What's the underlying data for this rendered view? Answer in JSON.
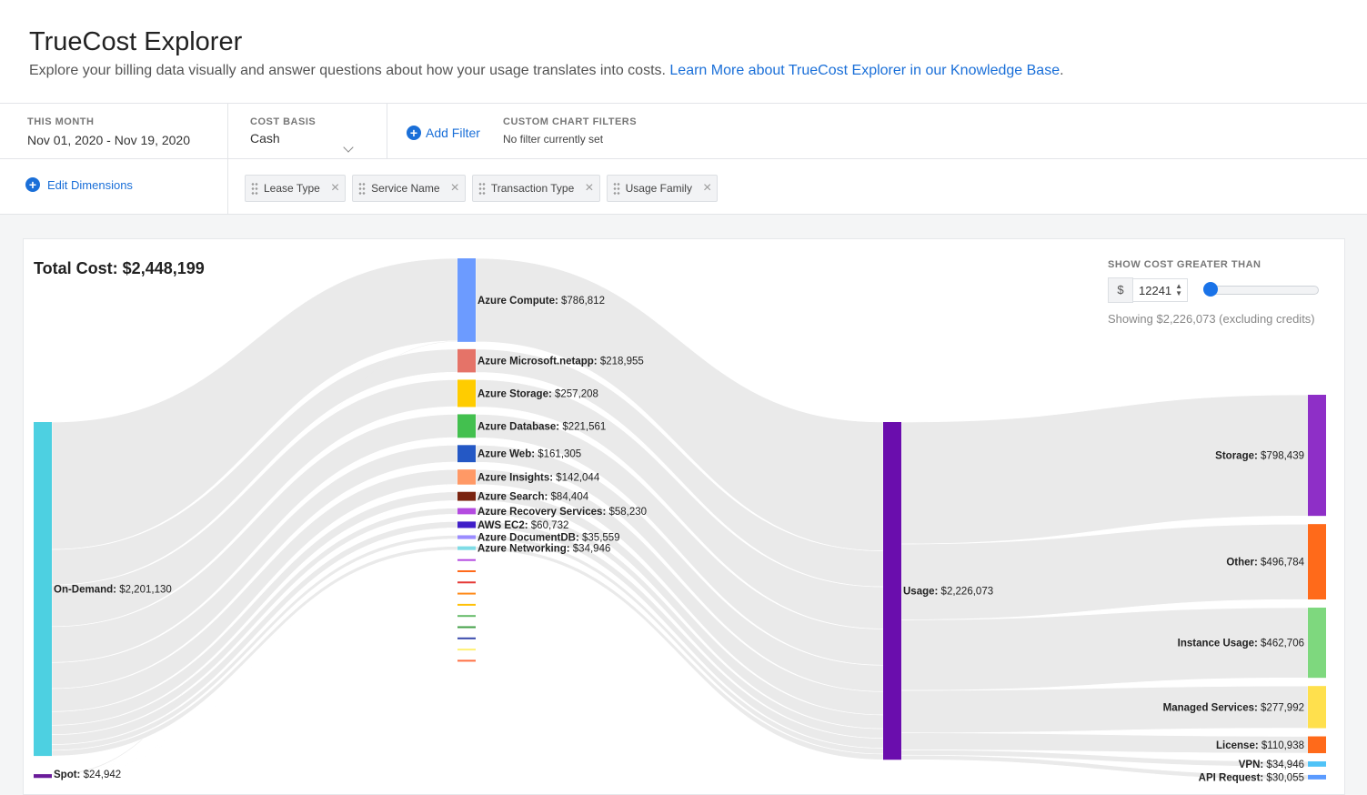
{
  "header": {
    "title": "TrueCost Explorer",
    "subtitle": "Explore your billing data visually and answer questions about how your usage translates into costs.",
    "link": "Learn More about TrueCost Explorer in our Knowledge Base",
    "link_suffix": "."
  },
  "filters": {
    "range_label": "THIS MONTH",
    "range_value": "Nov 01, 2020 - Nov 19, 2020",
    "basis_label": "COST BASIS",
    "basis_value": "Cash",
    "add_filter": "Add Filter",
    "custom_label": "CUSTOM CHART FILTERS",
    "custom_value": "No filter currently set"
  },
  "dimensions": {
    "edit_label": "Edit Dimensions",
    "chips": [
      "Lease Type",
      "Service Name",
      "Transaction Type",
      "Usage Family"
    ]
  },
  "panel": {
    "total_label": "Total Cost:",
    "total_value": "$2,448,199",
    "threshold_label": "SHOW COST GREATER THAN",
    "currency": "$",
    "threshold_value": "12241",
    "slider_level": 0.0,
    "showing": "Showing $2,226,073 (excluding credits)"
  },
  "chart_data": {
    "type": "sankey",
    "columns": [
      [
        {
          "id": "od",
          "name": "On-Demand",
          "amount": "$2,201,130",
          "value": 2201130,
          "color": "#4dd0e1"
        },
        {
          "id": "spot",
          "name": "Spot",
          "amount": "$24,942",
          "value": 24942,
          "color": "#6a1b9a"
        }
      ],
      [
        {
          "id": "comp",
          "name": "Azure Compute",
          "amount": "$786,812",
          "value": 786812,
          "color": "#6c9bff"
        },
        {
          "id": "netapp",
          "name": "Azure Microsoft.netapp",
          "amount": "$218,955",
          "value": 218955,
          "color": "#e57368"
        },
        {
          "id": "stor",
          "name": "Azure Storage",
          "amount": "$257,208",
          "value": 257208,
          "color": "#ffcc00"
        },
        {
          "id": "db",
          "name": "Azure Database",
          "amount": "$221,561",
          "value": 221561,
          "color": "#43c04f"
        },
        {
          "id": "web",
          "name": "Azure Web",
          "amount": "$161,305",
          "value": 161305,
          "color": "#2458c5"
        },
        {
          "id": "ins",
          "name": "Azure Insights",
          "amount": "$142,044",
          "value": 142044,
          "color": "#ff9966"
        },
        {
          "id": "srch",
          "name": "Azure Search",
          "amount": "$84,404",
          "value": 84404,
          "color": "#7a2410"
        },
        {
          "id": "rec",
          "name": "Azure Recovery Services",
          "amount": "$58,230",
          "value": 58230,
          "color": "#b44be0"
        },
        {
          "id": "ec2",
          "name": "AWS EC2",
          "amount": "$60,732",
          "value": 60732,
          "color": "#3f1ec8"
        },
        {
          "id": "ddb",
          "name": "Azure DocumentDB",
          "amount": "$35,559",
          "value": 35559,
          "color": "#9b8cff"
        },
        {
          "id": "net",
          "name": "Azure Networking",
          "amount": "$34,946",
          "value": 34946,
          "color": "#7fdce6"
        }
      ],
      [
        {
          "id": "usage",
          "name": "Usage",
          "amount": "$2,226,073",
          "value": 2226073,
          "color": "#6a0dad"
        }
      ],
      [
        {
          "id": "s4",
          "name": "Storage",
          "amount": "$798,439",
          "value": 798439,
          "color": "#8e2fc7"
        },
        {
          "id": "oth",
          "name": "Other",
          "amount": "$496,784",
          "value": 496784,
          "color": "#ff6a1a"
        },
        {
          "id": "iu",
          "name": "Instance Usage",
          "amount": "$462,706",
          "value": 462706,
          "color": "#7ed87e"
        },
        {
          "id": "ms",
          "name": "Managed Services",
          "amount": "$277,992",
          "value": 277992,
          "color": "#ffe04d"
        },
        {
          "id": "lic",
          "name": "License",
          "amount": "$110,938",
          "value": 110938,
          "color": "#ff6a1a"
        },
        {
          "id": "vpn",
          "name": "VPN",
          "amount": "$34,946",
          "value": 34946,
          "color": "#4fc3f7"
        },
        {
          "id": "api",
          "name": "API Request",
          "amount": "$30,055",
          "value": 30055,
          "color": "#5b9bff"
        }
      ]
    ],
    "unlabeled_small_nodes_colors": [
      "#b44be0",
      "#ff6a1a",
      "#e53935",
      "#ff8a1a",
      "#ffc107",
      "#66bb6a",
      "#43a047",
      "#3949ab",
      "#fff176",
      "#ff7043"
    ]
  }
}
